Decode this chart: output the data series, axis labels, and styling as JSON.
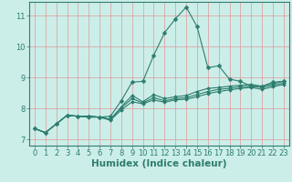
{
  "xlabel": "Humidex (Indice chaleur)",
  "ylabel": "",
  "xlim": [
    -0.5,
    23.5
  ],
  "ylim": [
    6.8,
    11.45
  ],
  "background_color": "#cceee8",
  "grid_color": "#dd9999",
  "line_color": "#2d7d6e",
  "xticks": [
    0,
    1,
    2,
    3,
    4,
    5,
    6,
    7,
    8,
    9,
    10,
    11,
    12,
    13,
    14,
    15,
    16,
    17,
    18,
    19,
    20,
    21,
    22,
    23
  ],
  "yticks": [
    7,
    8,
    9,
    10,
    11
  ],
  "curves": [
    [
      7.35,
      7.22,
      7.5,
      7.78,
      7.75,
      7.75,
      7.72,
      7.75,
      8.25,
      8.85,
      8.88,
      9.72,
      10.45,
      10.9,
      11.28,
      10.65,
      9.32,
      9.38,
      8.95,
      8.88,
      8.72,
      8.72,
      8.85,
      8.88
    ],
    [
      7.35,
      7.22,
      7.5,
      7.78,
      7.75,
      7.75,
      7.72,
      7.65,
      8.05,
      8.42,
      8.22,
      8.45,
      8.32,
      8.38,
      8.42,
      8.55,
      8.65,
      8.68,
      8.72,
      8.75,
      8.78,
      8.72,
      8.8,
      8.88
    ],
    [
      7.35,
      7.22,
      7.5,
      7.78,
      7.75,
      7.72,
      7.72,
      7.65,
      8.02,
      8.32,
      8.18,
      8.35,
      8.25,
      8.32,
      8.35,
      8.45,
      8.55,
      8.62,
      8.65,
      8.7,
      8.72,
      8.68,
      8.75,
      8.82
    ],
    [
      7.35,
      7.22,
      7.5,
      7.78,
      7.75,
      7.75,
      7.72,
      7.62,
      7.95,
      8.22,
      8.15,
      8.28,
      8.2,
      8.28,
      8.3,
      8.38,
      8.48,
      8.55,
      8.6,
      8.65,
      8.68,
      8.62,
      8.7,
      8.78
    ]
  ],
  "font_color": "#2d7d6e",
  "tick_fontsize": 6,
  "label_fontsize": 7.5
}
